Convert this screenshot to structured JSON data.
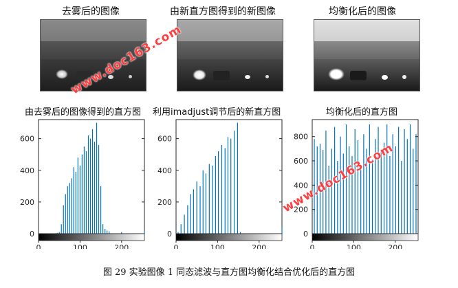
{
  "figure": {
    "caption": "图 29 实验图像 1 同态滤波与直方图均衡化结合优化后的直方图",
    "watermark": "www.doc163.com"
  },
  "images": [
    {
      "title": "去雾后的图像",
      "tone": "dehazed"
    },
    {
      "title": "由新直方图得到的新图像",
      "tone": "adjusted"
    },
    {
      "title": "均衡化后的图像",
      "tone": "equalized"
    }
  ],
  "colors": {
    "bar": "#0072bd",
    "axis": "#262626",
    "background": "#ffffff",
    "watermark": "#ff3f3f"
  },
  "chart_data": [
    {
      "type": "bar",
      "title": "由去雾后的图像得到的直方图",
      "xlim": [
        0,
        255
      ],
      "ylim": [
        0,
        720
      ],
      "xticks": [
        0,
        100,
        200
      ],
      "yticks": [
        0,
        200,
        400,
        600
      ],
      "colorbar": "grayscale",
      "x": [
        45,
        50,
        55,
        60,
        65,
        70,
        75,
        80,
        85,
        90,
        95,
        100,
        105,
        110,
        115,
        120,
        125,
        130,
        135,
        140,
        145,
        150,
        155,
        160,
        165,
        170,
        200,
        255
      ],
      "values": [
        5,
        10,
        60,
        180,
        250,
        300,
        320,
        350,
        420,
        390,
        480,
        430,
        500,
        550,
        520,
        620,
        600,
        660,
        580,
        700,
        560,
        300,
        60,
        30,
        20,
        15,
        10,
        20
      ]
    },
    {
      "type": "bar",
      "title": "利用imadjust调节后的新直方图",
      "xlim": [
        0,
        255
      ],
      "ylim": [
        0,
        720
      ],
      "xticks": [
        0,
        100,
        200
      ],
      "yticks": [
        0,
        200,
        400,
        600
      ],
      "colorbar": "grayscale",
      "x": [
        5,
        12,
        20,
        28,
        35,
        42,
        50,
        58,
        65,
        72,
        80,
        88,
        95,
        102,
        110,
        118,
        125,
        132,
        140,
        148,
        155,
        255
      ],
      "values": [
        10,
        60,
        120,
        180,
        250,
        280,
        330,
        300,
        400,
        380,
        440,
        430,
        490,
        520,
        560,
        540,
        610,
        600,
        650,
        700,
        10,
        40
      ]
    },
    {
      "type": "bar",
      "title": "均衡化后的直方图",
      "xlim": [
        0,
        255
      ],
      "ylim": [
        0,
        940
      ],
      "xticks": [
        0,
        100,
        200
      ],
      "yticks": [
        0,
        200,
        400,
        600,
        800
      ],
      "colorbar": "grayscale",
      "x": [
        5,
        12,
        19,
        26,
        33,
        40,
        47,
        54,
        61,
        68,
        75,
        82,
        89,
        96,
        103,
        110,
        117,
        124,
        131,
        138,
        145,
        152,
        159,
        166,
        173,
        180,
        187,
        194,
        201,
        208,
        215,
        222,
        229,
        236,
        243,
        250
      ],
      "values": [
        780,
        720,
        740,
        690,
        850,
        560,
        700,
        880,
        600,
        800,
        660,
        900,
        720,
        640,
        860,
        770,
        550,
        820,
        700,
        900,
        610,
        780,
        880,
        690,
        750,
        900,
        640,
        820,
        720,
        880,
        600,
        860,
        780,
        900,
        700,
        820
      ]
    }
  ]
}
